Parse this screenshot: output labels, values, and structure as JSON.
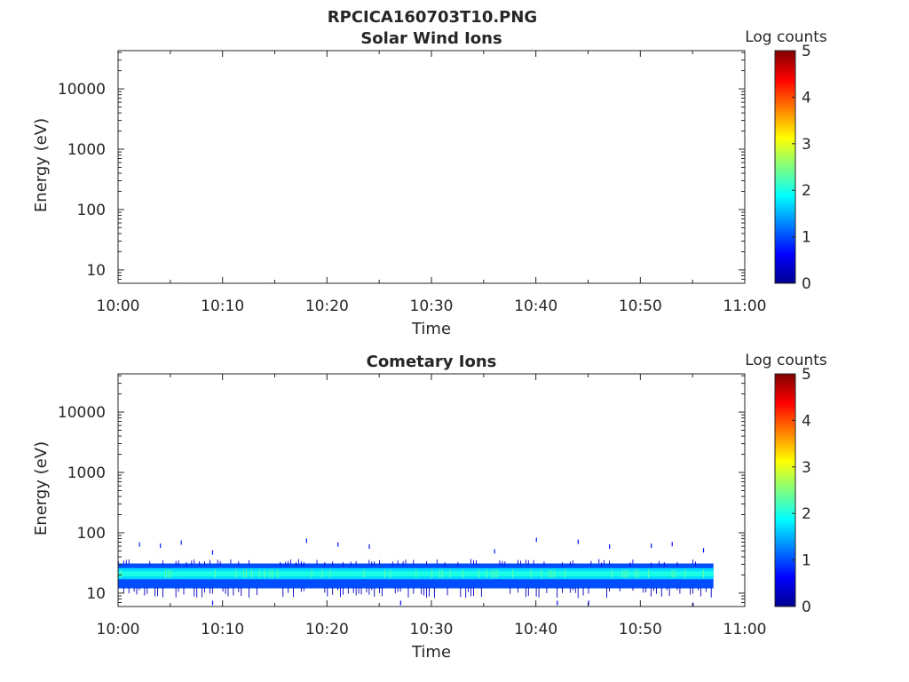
{
  "figure_title": "RPCICA160703T10.PNG",
  "chart_data": [
    {
      "type": "heatmap",
      "title": "Solar Wind Ions",
      "xlabel": "Time",
      "ylabel": "Energy (eV)",
      "x_ticks": [
        "10:00",
        "10:10",
        "10:20",
        "10:30",
        "10:40",
        "10:50",
        "11:00"
      ],
      "xlim": [
        "10:00",
        "11:00"
      ],
      "y_scale": "log",
      "y_ticks": [
        "10",
        "100",
        "1000",
        "10000"
      ],
      "ylim": [
        6,
        43000
      ],
      "colorbar": {
        "label": "Log counts",
        "range": [
          0,
          5
        ],
        "ticks": [
          "0",
          "1",
          "2",
          "3",
          "4",
          "5"
        ],
        "colormap": "jet"
      },
      "data": {
        "description": "",
        "bands": [],
        "sparse_points": []
      }
    },
    {
      "type": "heatmap",
      "title": "Cometary Ions",
      "xlabel": "Time",
      "ylabel": "Energy (eV)",
      "x_ticks": [
        "10:00",
        "10:10",
        "10:20",
        "10:30",
        "10:40",
        "10:50",
        "11:00"
      ],
      "xlim": [
        "10:00",
        "11:00"
      ],
      "y_scale": "log",
      "y_ticks": [
        "10",
        "100",
        "1000",
        "10000"
      ],
      "ylim": [
        6,
        43000
      ],
      "colorbar": {
        "label": "Log counts",
        "range": [
          0,
          5
        ],
        "ticks": [
          "0",
          "1",
          "2",
          "3",
          "4",
          "5"
        ],
        "colormap": "jet"
      },
      "data": {
        "bands": [
          {
            "t_start": "10:00",
            "t_end": "10:57",
            "e_low": 12,
            "e_high": 31,
            "log_counts": 1.0
          },
          {
            "t_start": "10:00",
            "t_end": "10:57",
            "e_low": 17,
            "e_high": 26,
            "log_counts": 1.7
          },
          {
            "t_start": "10:00",
            "t_end": "10:57",
            "e_low": 19,
            "e_high": 23,
            "log_counts": 2.0
          }
        ],
        "sparse_points": [
          {
            "t": "10:02",
            "e": 65,
            "log_counts": 0.8
          },
          {
            "t": "10:04",
            "e": 62,
            "log_counts": 0.8
          },
          {
            "t": "10:06",
            "e": 70,
            "log_counts": 0.8
          },
          {
            "t": "10:09",
            "e": 48,
            "log_counts": 0.7
          },
          {
            "t": "10:18",
            "e": 75,
            "log_counts": 0.8
          },
          {
            "t": "10:21",
            "e": 65,
            "log_counts": 0.7
          },
          {
            "t": "10:24",
            "e": 60,
            "log_counts": 0.7
          },
          {
            "t": "10:36",
            "e": 50,
            "log_counts": 0.8
          },
          {
            "t": "10:40",
            "e": 78,
            "log_counts": 0.8
          },
          {
            "t": "10:44",
            "e": 72,
            "log_counts": 0.7
          },
          {
            "t": "10:47",
            "e": 60,
            "log_counts": 0.7
          },
          {
            "t": "10:51",
            "e": 62,
            "log_counts": 0.7
          },
          {
            "t": "10:53",
            "e": 66,
            "log_counts": 0.7
          },
          {
            "t": "10:56",
            "e": 52,
            "log_counts": 0.7
          },
          {
            "t": "10:09",
            "e": 7,
            "log_counts": 0.6
          },
          {
            "t": "10:27",
            "e": 7,
            "log_counts": 0.6
          },
          {
            "t": "10:42",
            "e": 7,
            "log_counts": 0.6
          },
          {
            "t": "10:45",
            "e": 7,
            "log_counts": 0.6
          },
          {
            "t": "10:55",
            "e": 6.5,
            "log_counts": 0.6
          }
        ]
      }
    }
  ]
}
